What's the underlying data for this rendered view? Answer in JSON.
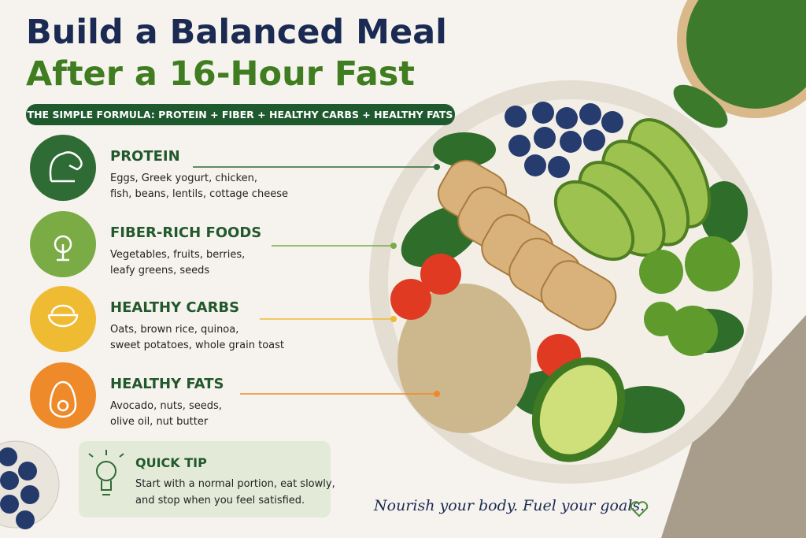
{
  "header": {
    "title_line1": "Build a Balanced Meal",
    "title_line2": "After a 16-Hour Fast",
    "formula": "THE SIMPLE FORMULA: PROTEIN + FIBER + HEALTHY CARBS + HEALTHY FATS"
  },
  "groups": [
    {
      "name": "PROTEIN",
      "color": "#2f6b35",
      "lines": [
        "Eggs, Greek yogurt, chicken,",
        "fish, beans, lentils, cottage cheese"
      ]
    },
    {
      "name": "FIBER-RICH FOODS",
      "color": "#7aab45",
      "lines": [
        "Vegetables, fruits, berries,",
        "leafy greens, seeds"
      ]
    },
    {
      "name": "HEALTHY CARBS",
      "color": "#efbb33",
      "lines": [
        "Oats, brown rice, quinoa,",
        "sweet potatoes, whole grain toast"
      ]
    },
    {
      "name": "HEALTHY FATS",
      "color": "#ee8a2a",
      "lines": [
        "Avocado, nuts, seeds,",
        "olive oil, nut butter"
      ]
    }
  ],
  "tip": {
    "title": "QUICK TIP",
    "lines": [
      "Start with a normal portion, eat slowly,",
      "and stop when you feel satisfied."
    ]
  },
  "tagline": "Nourish your body. Fuel your goals."
}
